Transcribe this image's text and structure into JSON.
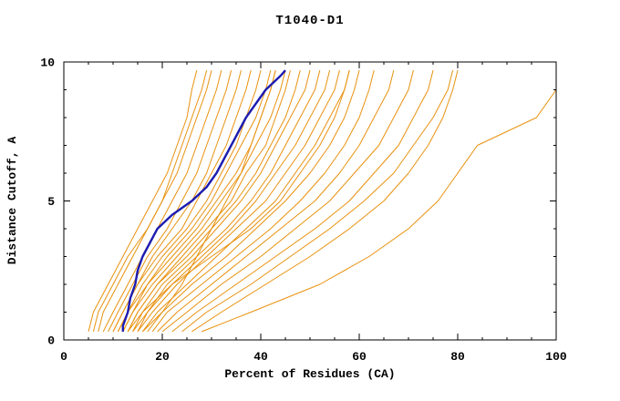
{
  "title": "T1040-D1",
  "chart_data": {
    "type": "line",
    "title": "T1040-D1",
    "xlabel": "Percent of Residues (CA)",
    "ylabel": "Distance Cutoff, A",
    "xlim": [
      0,
      100
    ],
    "ylim": [
      0,
      10
    ],
    "x_ticks": [
      0,
      20,
      40,
      60,
      80,
      100
    ],
    "y_ticks": [
      0,
      5,
      10
    ],
    "x_minor_step": 5,
    "y_minor_step": 1,
    "grid": false,
    "legend": "none",
    "colors": {
      "model": "#e8910e",
      "highlight": "#1c1cb0",
      "frame": "#000000",
      "background": "#ffffff"
    },
    "model_cutoffs": [
      0.3,
      1,
      2,
      3,
      4,
      5,
      6,
      7,
      8,
      9,
      9.7
    ],
    "model_series": [
      [
        5,
        6,
        9,
        12,
        15,
        18,
        21,
        23,
        25,
        26,
        27
      ],
      [
        6,
        7,
        10,
        13,
        17,
        20,
        22,
        24,
        26,
        28,
        29
      ],
      [
        7,
        8,
        11,
        14,
        17,
        20,
        23,
        25,
        27,
        29,
        30
      ],
      [
        8,
        10,
        13,
        16,
        19,
        22,
        25,
        27,
        29,
        31,
        32
      ],
      [
        9,
        11,
        14,
        17,
        21,
        24,
        27,
        29,
        31,
        33,
        34
      ],
      [
        10,
        12,
        15,
        18,
        22,
        26,
        29,
        31,
        33,
        35,
        36
      ],
      [
        10,
        12,
        15,
        19,
        24,
        27,
        30,
        33,
        35,
        37,
        38
      ],
      [
        11,
        13,
        16,
        20,
        25,
        29,
        32,
        35,
        37,
        39,
        40
      ],
      [
        11,
        13,
        17,
        21,
        26,
        30,
        33,
        36,
        39,
        41,
        42
      ],
      [
        12,
        14,
        17,
        22,
        27,
        31,
        35,
        38,
        40,
        42,
        43
      ],
      [
        12,
        14,
        18,
        23,
        28,
        32,
        36,
        39,
        42,
        44,
        45
      ],
      [
        13,
        15,
        19,
        24,
        29,
        34,
        37,
        41,
        43,
        45,
        46
      ],
      [
        13,
        15,
        19,
        25,
        30,
        35,
        39,
        42,
        45,
        47,
        48
      ],
      [
        14,
        16,
        20,
        26,
        31,
        36,
        40,
        43,
        46,
        49,
        50
      ],
      [
        14,
        17,
        21,
        27,
        33,
        38,
        42,
        45,
        48,
        51,
        52
      ],
      [
        15,
        17,
        22,
        28,
        34,
        39,
        43,
        47,
        50,
        53,
        54
      ],
      [
        15,
        18,
        23,
        29,
        35,
        41,
        45,
        49,
        52,
        55,
        56
      ],
      [
        16,
        19,
        25,
        31,
        37,
        43,
        47,
        51,
        54,
        57,
        58
      ],
      [
        16,
        20,
        24,
        27,
        30,
        33,
        36,
        38,
        40,
        42,
        43
      ],
      [
        13,
        16,
        22,
        30,
        38,
        44,
        48,
        52,
        55,
        57,
        58
      ],
      [
        17,
        20,
        26,
        33,
        39,
        45,
        50,
        54,
        57,
        59,
        60
      ],
      [
        18,
        21,
        28,
        35,
        42,
        48,
        53,
        57,
        60,
        62,
        63
      ],
      [
        19,
        23,
        30,
        37,
        44,
        51,
        56,
        60,
        63,
        66,
        67
      ],
      [
        20,
        25,
        32,
        40,
        47,
        54,
        59,
        64,
        67,
        70,
        71
      ],
      [
        22,
        27,
        35,
        43,
        51,
        58,
        63,
        68,
        71,
        74,
        75
      ],
      [
        24,
        29,
        38,
        46,
        54,
        61,
        67,
        71,
        75,
        78,
        79
      ],
      [
        26,
        32,
        41,
        50,
        58,
        65,
        70,
        74,
        77,
        79,
        80
      ],
      [
        28,
        38,
        52,
        62,
        70,
        76,
        80,
        84,
        96,
        100,
        100
      ]
    ],
    "highlight_name": "selected-model",
    "highlight_cutoffs": [
      0.3,
      0.5,
      1,
      1.5,
      2,
      2.5,
      3,
      3.5,
      4,
      4.5,
      5,
      5.5,
      6,
      6.5,
      7,
      7.5,
      8,
      8.5,
      9,
      9.5,
      9.7
    ],
    "highlight_values": [
      12,
      12,
      13,
      13.5,
      14.5,
      15,
      16,
      17.5,
      19,
      22,
      26,
      29,
      31,
      32.5,
      34,
      35.5,
      37,
      39,
      41,
      44,
      45
    ]
  }
}
